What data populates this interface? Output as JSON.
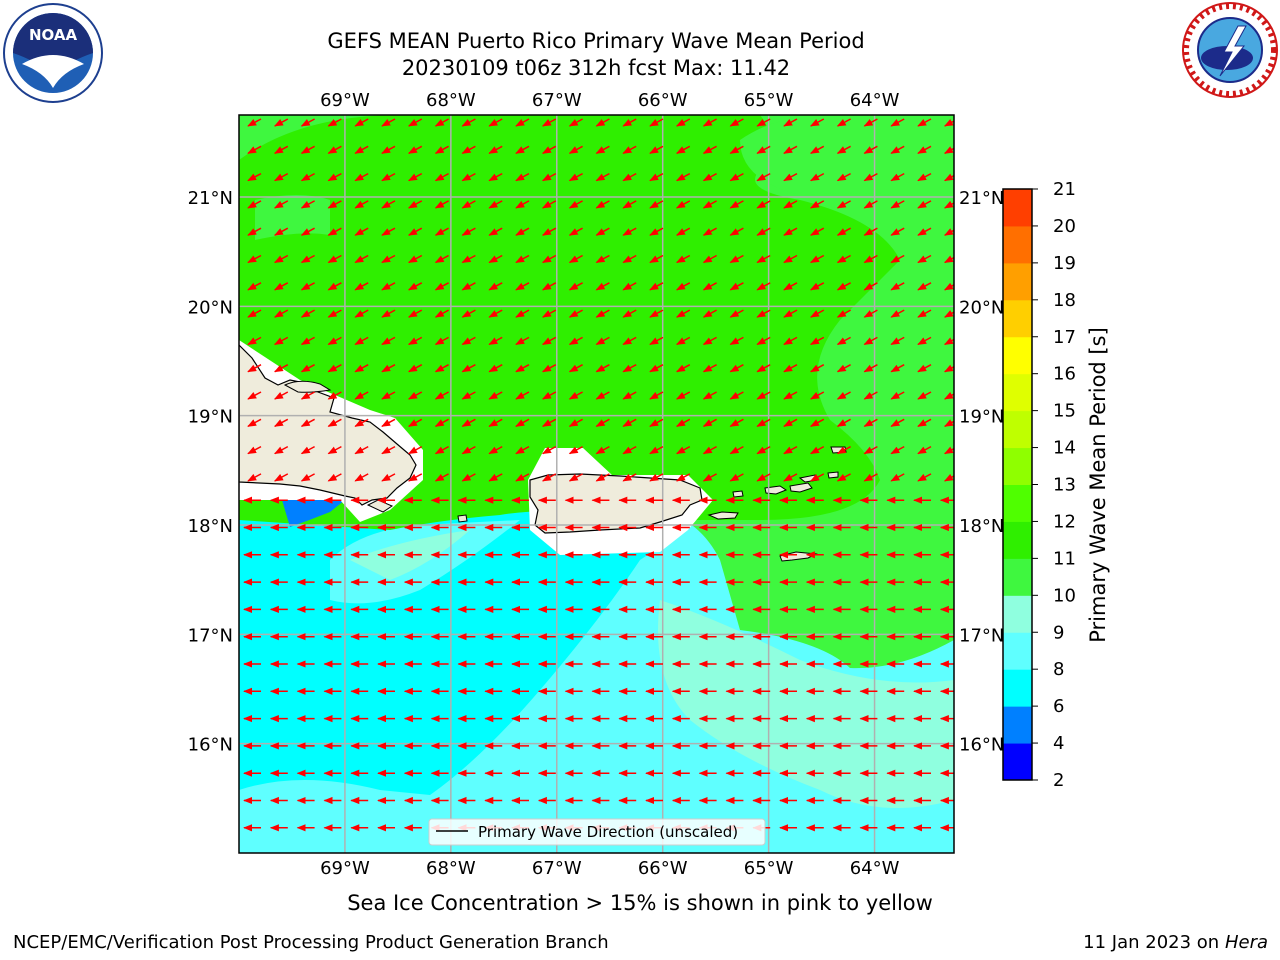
{
  "title": {
    "line1": "GEFS MEAN Puerto Rico Primary Wave Mean Period",
    "line2": "20230109 t06z 312h fcst   Max: 11.42"
  },
  "map": {
    "lon_range": [
      -70,
      -63.25
    ],
    "lat_range": [
      15,
      21.75
    ],
    "lon_ticks": [
      "69°W",
      "68°W",
      "67°W",
      "66°W",
      "65°W",
      "64°W"
    ],
    "lat_ticks": [
      "21°N",
      "20°N",
      "19°N",
      "18°N",
      "17°N",
      "16°N"
    ],
    "land_color": "#efecdc",
    "arrow_color": "#ff0000",
    "legend_label": "Primary Wave Direction (unscaled)"
  },
  "colorbar": {
    "label": "Primary Wave Mean Period [s]",
    "ticks": [
      "2",
      "4",
      "6",
      "8",
      "9",
      "10",
      "11",
      "12",
      "13",
      "14",
      "15",
      "16",
      "17",
      "18",
      "19",
      "20",
      "21"
    ],
    "colors": [
      "#0000ff",
      "#0080ff",
      "#00ffff",
      "#5fffff",
      "#8fffdf",
      "#3ff73f",
      "#2fef00",
      "#4fff00",
      "#8fff00",
      "#bfff00",
      "#dfff00",
      "#ffff00",
      "#ffcf00",
      "#ff9f00",
      "#ff6f00",
      "#ff3f00",
      "#ff0000"
    ]
  },
  "footer": {
    "note": "Sea Ice Concentration > 15% is shown in pink to yellow",
    "branch": "NCEP/EMC/Verification Post Processing Product Generation Branch",
    "date": "11 Jan 2023 on ",
    "machine": "Hera"
  },
  "logos": {
    "noaa_text": "NOAA",
    "nws_ring_text": "NATIONAL WEATHER SERVICE"
  }
}
